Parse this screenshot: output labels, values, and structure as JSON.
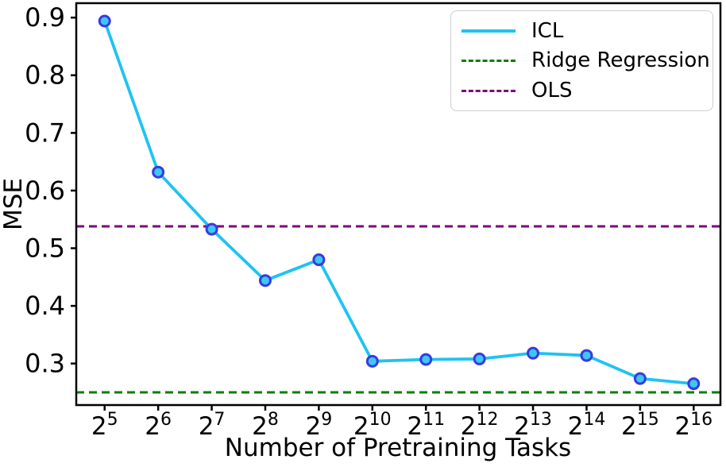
{
  "figure": {
    "background": "#ffffff",
    "axis_color": "#000000"
  },
  "legend": {
    "position": "upper-right",
    "items": [
      {
        "label": "ICL",
        "color": "#1fc3f2",
        "line_style": "solid"
      },
      {
        "label": "Ridge Regression",
        "color": "#008000",
        "line_style": "dashed"
      },
      {
        "label": "OLS",
        "color": "#800080",
        "line_style": "dashed"
      }
    ]
  },
  "chart_data": {
    "type": "line",
    "title": "",
    "xlabel": "Number of Pretraining Tasks",
    "ylabel": "MSE",
    "x_scale": "log2",
    "grid": false,
    "x_exponents": [
      5,
      6,
      7,
      8,
      9,
      10,
      11,
      12,
      13,
      14,
      15,
      16
    ],
    "x_tick_labels": [
      "2^5",
      "2^6",
      "2^7",
      "2^8",
      "2^9",
      "2^10",
      "2^11",
      "2^12",
      "2^13",
      "2^14",
      "2^15",
      "2^16"
    ],
    "xlim_exponents": [
      4.47,
      16.5
    ],
    "yticks": [
      0.3,
      0.4,
      0.5,
      0.6,
      0.7,
      0.8,
      0.9
    ],
    "ylim": [
      0.228,
      0.925
    ],
    "series": [
      {
        "name": "ICL",
        "kind": "line_markers",
        "color": "#1fc3f2",
        "marker_face": "#3cc8f2",
        "marker_edge": "#3a3ae0",
        "values": [
          0.894,
          0.632,
          0.533,
          0.444,
          0.48,
          0.304,
          0.307,
          0.308,
          0.318,
          0.314,
          0.274,
          0.265
        ]
      },
      {
        "name": "Ridge Regression",
        "kind": "hline",
        "color": "#008000",
        "style": "dashed",
        "value": 0.25
      },
      {
        "name": "OLS",
        "kind": "hline",
        "color": "#800080",
        "style": "dashed",
        "value": 0.538
      }
    ]
  }
}
